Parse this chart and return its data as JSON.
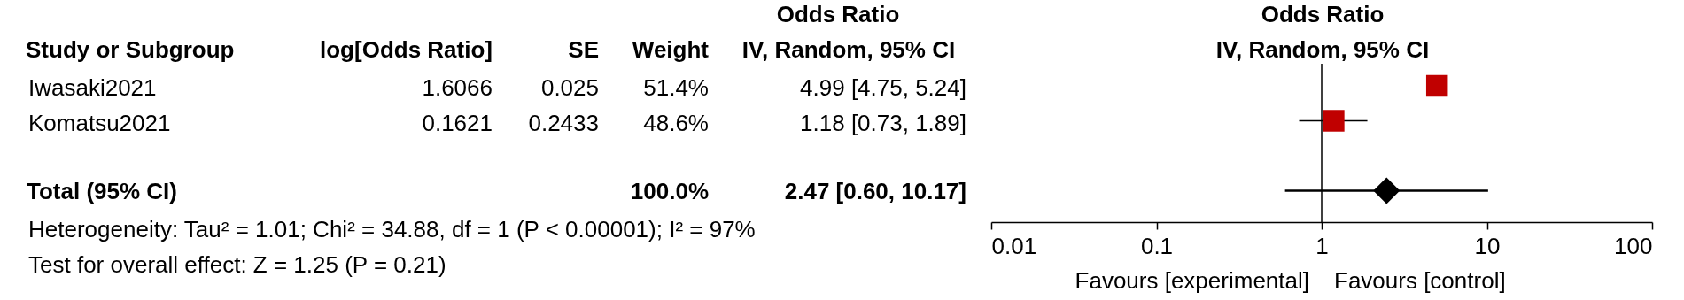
{
  "chart_data": {
    "type": "scatter",
    "title": "Odds Ratio",
    "subtitle": "IV, Random, 95% CI",
    "categories": [
      null,
      null,
      null,
      null
    ],
    "series": [
      {
        "marker": "square",
        "color": "#c00000",
        "values": [
          4.99,
          1.18,
          null,
          null
        ],
        "errors": [
          null,
          [
            0.73,
            1.89
          ],
          null,
          null
        ]
      },
      {
        "marker": "diamond",
        "color": "#000000",
        "values": [
          null,
          null,
          null,
          2.47
        ],
        "errors": [
          null,
          null,
          null,
          [
            0.6,
            10.17
          ]
        ]
      }
    ],
    "orientation": "horizontal",
    "log": "x",
    "xlim": [
      0.01,
      100
    ],
    "xticks": [
      0.01,
      0.1,
      1,
      10,
      100
    ],
    "grid": false,
    "tick_labels": "x",
    "ref_lines": [
      {
        "axis": "x",
        "value": 1,
        "color": "#000000"
      }
    ],
    "annotations": [
      "Odds Ratio",
      "Study or Subgroup",
      "log[Odds Ratio]",
      "SE",
      "Weight",
      "IV, Random, 95% CI",
      "Iwasaki2021",
      "1.6066",
      "0.025",
      "51.4%",
      "4.99 [4.75, 5.24]",
      "Komatsu2021",
      "0.1621",
      "0.2433",
      "48.6%",
      "1.18 [0.73, 1.89]",
      "Total (95% CI)",
      "100.0%",
      "2.47 [0.60, 10.17]",
      "Heterogeneity: Tau² = 1.01; Chi² = 34.88, df = 1 (P < 0.00001); I² = 97%",
      "Test for overall effect: Z = 1.25 (P = 0.21)",
      "Favours [experimental]",
      "Favours [control]"
    ]
  }
}
